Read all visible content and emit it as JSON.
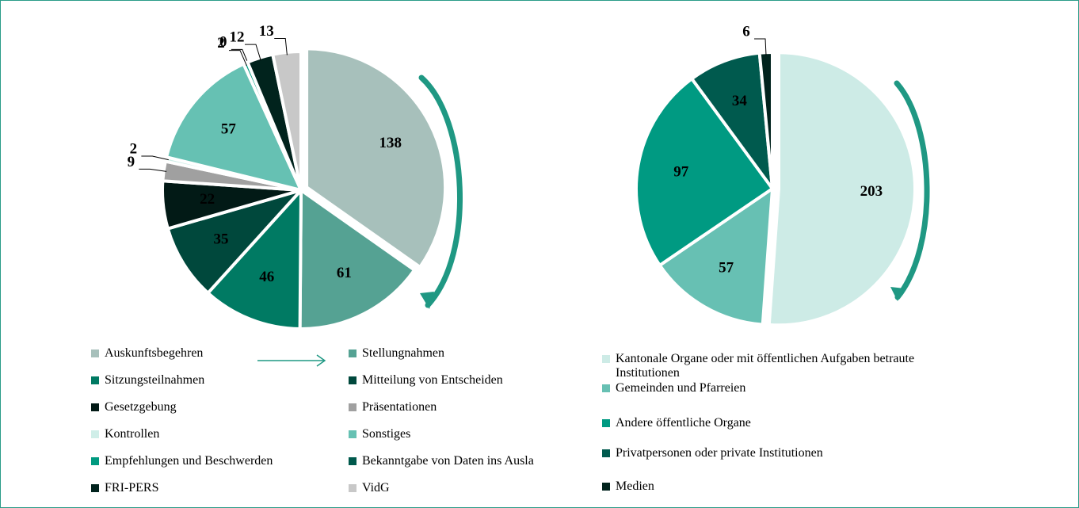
{
  "chart_data": [
    {
      "type": "pie",
      "categories": [
        "Auskunftsbegehren",
        "Stellungnahmen",
        "Sitzungsteilnahmen",
        "Mitteilung von Entscheiden",
        "Gesetzgebung",
        "Präsentationen",
        "Kontrollen",
        "Sonstiges",
        "Empfehlungen und Beschwerden",
        "Bekanntgabe von Daten ins Ausla",
        "FRI-PERS",
        "VidG"
      ],
      "values": [
        138,
        61,
        46,
        35,
        22,
        9,
        2,
        57,
        2,
        0,
        12,
        13
      ],
      "colors": [
        "#a7c0bb",
        "#55a293",
        "#007a63",
        "#00483c",
        "#021a16",
        "#a0a0a0",
        "#cfeee8",
        "#66c1b3",
        "#009a80",
        "#00594c",
        "#01231d",
        "#c8c8c8"
      ]
    },
    {
      "type": "pie",
      "categories": [
        "Kantonale Organe oder mit öffentlichen Aufgaben betraute Institutionen",
        "Gemeinden und Pfarreien",
        "Andere öffentliche Organe",
        "Privatpersonen oder private Institutionen",
        "Medien"
      ],
      "values": [
        203,
        57,
        97,
        34,
        6
      ],
      "colors": [
        "#cdebe6",
        "#67c0b3",
        "#009a82",
        "#005a4e",
        "#01231d"
      ]
    }
  ]
}
